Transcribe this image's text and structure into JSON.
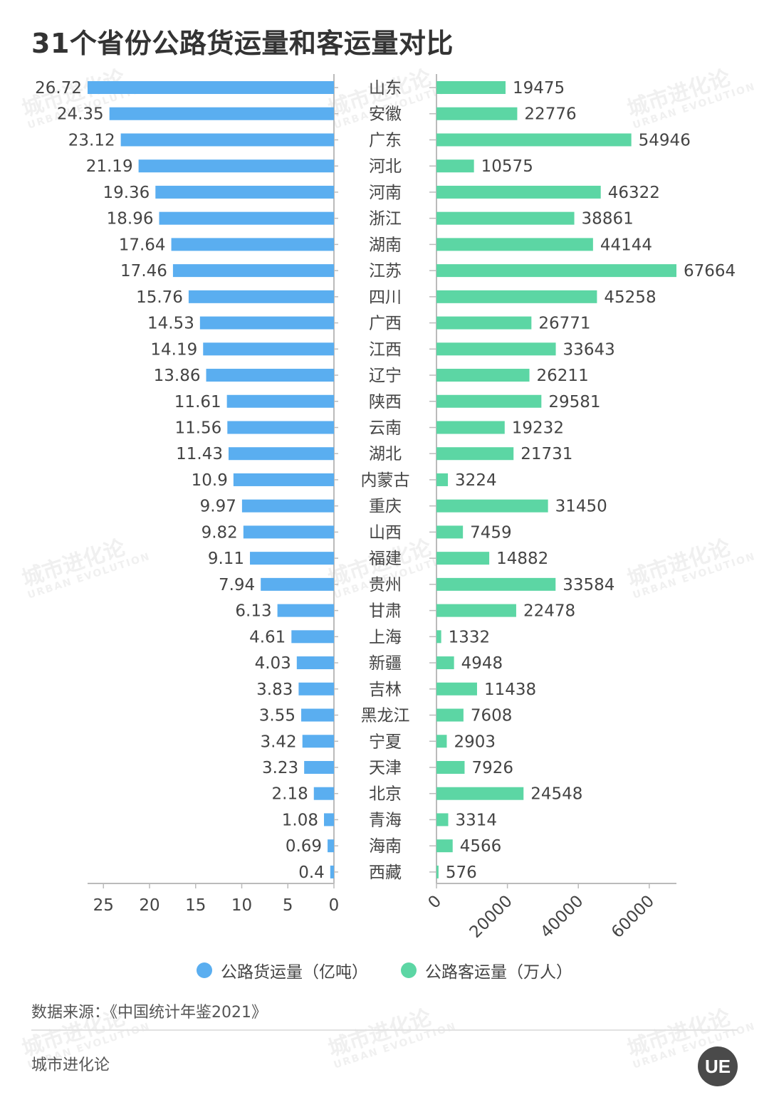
{
  "title": "31个省份公路货运量和客运量对比",
  "colors": {
    "freight": "#5aaef0",
    "passenger": "#5cd6a4",
    "axis": "#bbbbbb",
    "text": "#444444"
  },
  "chart_data": {
    "type": "bar",
    "layout": "butterfly",
    "categories": [
      "山东",
      "安徽",
      "广东",
      "河北",
      "河南",
      "浙江",
      "湖南",
      "江苏",
      "四川",
      "广西",
      "江西",
      "辽宁",
      "陕西",
      "云南",
      "湖北",
      "内蒙古",
      "重庆",
      "山西",
      "福建",
      "贵州",
      "甘肃",
      "上海",
      "新疆",
      "吉林",
      "黑龙江",
      "宁夏",
      "天津",
      "北京",
      "青海",
      "海南",
      "西藏"
    ],
    "series": [
      {
        "name": "公路货运量（亿吨）",
        "value_labels": [
          "26.72",
          "24.35",
          "23.12",
          "21.19",
          "19.36",
          "18.96",
          "17.64",
          "17.46",
          "15.76",
          "14.53",
          "14.19",
          "13.86",
          "11.61",
          "11.56",
          "11.43",
          "10.9",
          "9.97",
          "9.82",
          "9.11",
          "7.94",
          "6.13",
          "4.61",
          "4.03",
          "3.83",
          "3.55",
          "3.42",
          "3.23",
          "2.18",
          "1.08",
          "0.69",
          "0.4"
        ],
        "values": [
          26.72,
          24.35,
          23.12,
          21.19,
          19.36,
          18.96,
          17.64,
          17.46,
          15.76,
          14.53,
          14.19,
          13.86,
          11.61,
          11.56,
          11.43,
          10.9,
          9.97,
          9.82,
          9.11,
          7.94,
          6.13,
          4.61,
          4.03,
          3.83,
          3.55,
          3.42,
          3.23,
          2.18,
          1.08,
          0.69,
          0.4
        ],
        "xlim": [
          0,
          26.72
        ],
        "ticks": [
          "25",
          "20",
          "15",
          "10",
          "5",
          "0"
        ],
        "tick_values": [
          25,
          20,
          15,
          10,
          5,
          0
        ]
      },
      {
        "name": "公路客运量（万人）",
        "value_labels": [
          "19475",
          "22776",
          "54946",
          "10575",
          "46322",
          "38861",
          "44144",
          "67664",
          "45258",
          "26771",
          "33643",
          "26211",
          "29581",
          "19232",
          "21731",
          "3224",
          "31450",
          "7459",
          "14882",
          "33584",
          "22478",
          "1332",
          "4948",
          "11438",
          "7608",
          "2903",
          "7926",
          "24548",
          "3314",
          "4566",
          "576"
        ],
        "values": [
          19475,
          22776,
          54946,
          10575,
          46322,
          38861,
          44144,
          67664,
          45258,
          26771,
          33643,
          26211,
          29581,
          19232,
          21731,
          3224,
          31450,
          7459,
          14882,
          33584,
          22478,
          1332,
          4948,
          11438,
          7608,
          2903,
          7926,
          24548,
          3314,
          4566,
          576
        ],
        "xlim": [
          0,
          67664
        ],
        "ticks": [
          "0",
          "20000",
          "40000",
          "60000"
        ],
        "tick_values": [
          0,
          20000,
          40000,
          60000
        ]
      }
    ]
  },
  "legend": {
    "freight_label": "公路货运量（亿吨）",
    "passenger_label": "公路客运量（万人）"
  },
  "source": "数据来源：《中国统计年鉴2021》",
  "brand": "城市进化论",
  "logo_text": "UE",
  "watermark": {
    "cn": "城市进化论",
    "en": "URBAN EVOLUTION"
  }
}
